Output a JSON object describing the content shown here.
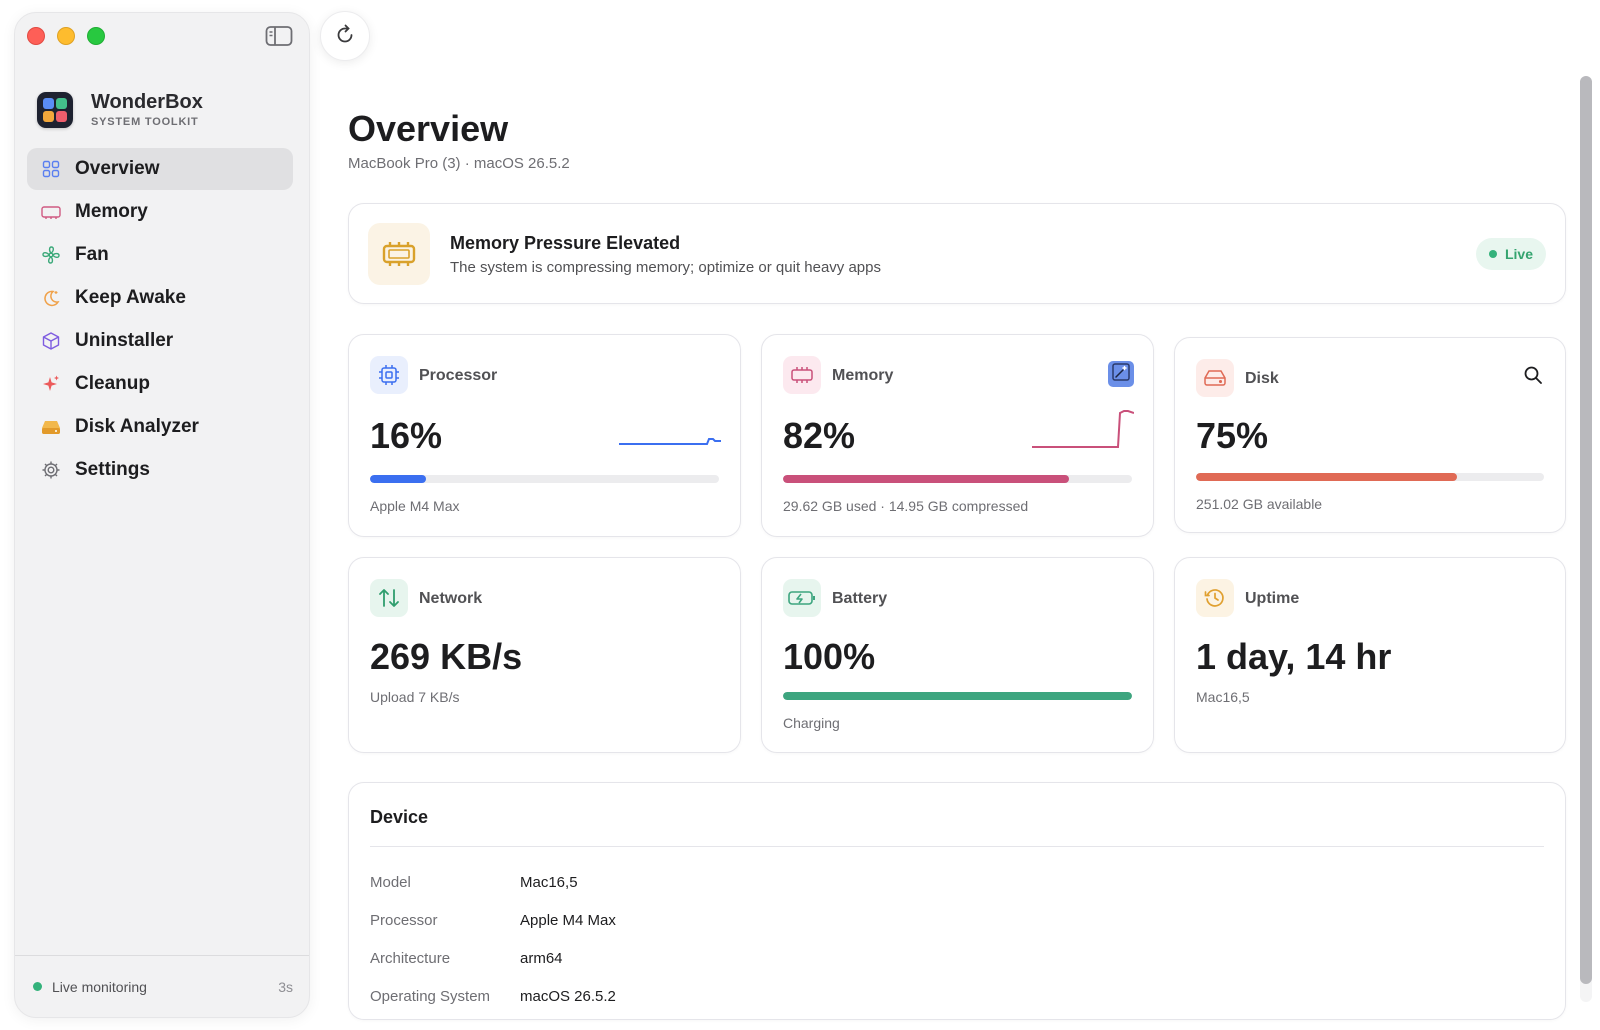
{
  "app": {
    "name": "WonderBox",
    "subtitle": "SYSTEM TOOLKIT"
  },
  "sidebar": {
    "items": [
      {
        "label": "Overview",
        "icon": "grid-icon",
        "active": true
      },
      {
        "label": "Memory",
        "icon": "memory-chip-icon"
      },
      {
        "label": "Fan",
        "icon": "fan-icon"
      },
      {
        "label": "Keep Awake",
        "icon": "moon-icon"
      },
      {
        "label": "Uninstaller",
        "icon": "box-icon"
      },
      {
        "label": "Cleanup",
        "icon": "sparkle-icon"
      },
      {
        "label": "Disk Analyzer",
        "icon": "disk-drive-icon"
      },
      {
        "label": "Settings",
        "icon": "gear-icon"
      }
    ],
    "footer": {
      "status": "Live monitoring",
      "interval": "3s"
    }
  },
  "header": {
    "title": "Overview",
    "subtitle": "MacBook Pro (3) · macOS 26.5.2"
  },
  "alert": {
    "title": "Memory Pressure Elevated",
    "message": "The system is compressing memory; optimize or quit heavy apps",
    "badge": "Live"
  },
  "metrics": {
    "processor": {
      "label": "Processor",
      "value": "16%",
      "percent": 16,
      "sub": "Apple M4 Max",
      "color": "#3b6ff0"
    },
    "memory": {
      "label": "Memory",
      "value": "82%",
      "percent": 82,
      "sub": "29.62 GB used · 14.95 GB compressed",
      "color": "#c9507a"
    },
    "disk": {
      "label": "Disk",
      "value": "75%",
      "percent": 75,
      "sub": "251.02 GB available",
      "color": "#e06a55"
    },
    "network": {
      "label": "Network",
      "value": "269 KB/s",
      "sub": "Upload 7 KB/s",
      "color": "#2f9e6e"
    },
    "battery": {
      "label": "Battery",
      "value": "100%",
      "percent": 100,
      "sub": "Charging",
      "color": "#3da57f"
    },
    "uptime": {
      "label": "Uptime",
      "value": "1 day, 14 hr",
      "sub": "Mac16,5",
      "color": "#e0a030"
    }
  },
  "device": {
    "title": "Device",
    "rows": [
      {
        "key": "Model",
        "value": "Mac16,5"
      },
      {
        "key": "Processor",
        "value": "Apple M4 Max"
      },
      {
        "key": "Architecture",
        "value": "arm64"
      },
      {
        "key": "Operating System",
        "value": "macOS 26.5.2"
      }
    ]
  }
}
